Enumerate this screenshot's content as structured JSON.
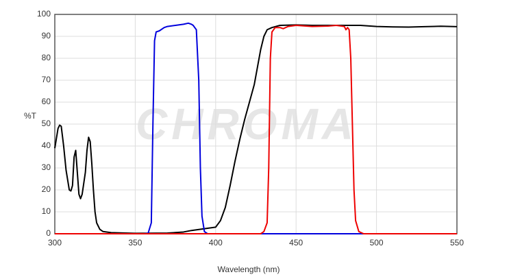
{
  "chart_data": {
    "type": "line",
    "watermark": "CHROMA",
    "x_label": "Wavelength (nm)",
    "y_label": "%T",
    "xlim": [
      300,
      550
    ],
    "xticks": [
      300,
      350,
      400,
      450,
      500,
      550
    ],
    "ylim": [
      0,
      100
    ],
    "yticks": [
      0,
      10,
      20,
      30,
      40,
      50,
      60,
      70,
      80,
      90,
      100
    ],
    "grid": true,
    "series": [
      {
        "color": "#000000",
        "x": [
          300,
          302,
          303,
          304,
          305.5,
          307,
          309,
          310,
          311,
          312,
          313,
          314,
          315,
          316,
          317,
          319,
          320,
          321,
          322,
          323,
          324,
          325,
          326,
          328,
          330,
          335,
          350,
          370,
          380,
          385,
          390,
          395,
          400,
          403,
          406,
          409,
          412,
          415,
          418,
          421,
          424,
          426,
          428,
          430,
          432,
          435,
          440,
          450,
          460,
          470,
          480,
          490,
          500,
          510,
          520,
          530,
          540,
          550
        ],
        "values": [
          39,
          48,
          49.5,
          49,
          40,
          29,
          20,
          19.5,
          22,
          35,
          38,
          28,
          18,
          16,
          18,
          28,
          38,
          44,
          42,
          32,
          20,
          10,
          5,
          2,
          1,
          0.5,
          0.2,
          0.3,
          0.8,
          1.5,
          2,
          2.5,
          3,
          6,
          12,
          22,
          33,
          43,
          52,
          60,
          68,
          76,
          84,
          90,
          93,
          94,
          95,
          95.2,
          95,
          95,
          95,
          95,
          94.5,
          94.3,
          94.2,
          94.4,
          94.6,
          94.4
        ]
      },
      {
        "color": "#0000dd",
        "x": [
          300,
          355,
          358,
          360,
          361,
          362,
          363,
          365,
          368,
          370,
          375,
          380,
          383,
          385,
          386,
          387,
          388,
          389.5,
          390.5,
          391.5,
          393,
          395,
          550
        ],
        "values": [
          0,
          0,
          0.2,
          5,
          50,
          88,
          92,
          92.5,
          94,
          94.5,
          95,
          95.5,
          96,
          95.5,
          95,
          94,
          93,
          70,
          30,
          8,
          1,
          0,
          0
        ]
      },
      {
        "color": "#ee0000",
        "x": [
          300,
          428,
          430,
          432,
          433,
          434,
          435,
          437,
          440,
          442,
          445,
          450,
          460,
          470,
          475,
          480,
          481,
          482,
          483,
          484,
          485,
          486,
          487,
          489,
          492,
          550
        ],
        "values": [
          0,
          0,
          1,
          5,
          30,
          80,
          92,
          94,
          94,
          93.5,
          94.5,
          95,
          94.5,
          94.7,
          95,
          94.5,
          93,
          94,
          93,
          80,
          50,
          20,
          6,
          1,
          0,
          0
        ]
      }
    ]
  }
}
